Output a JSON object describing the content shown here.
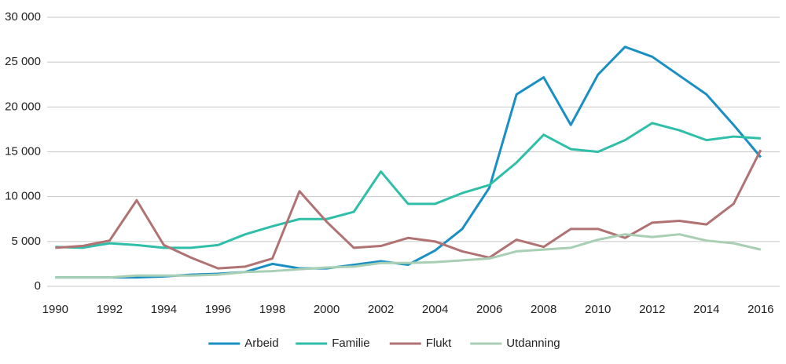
{
  "chart_data": {
    "type": "line",
    "x": [
      1990,
      1991,
      1992,
      1993,
      1994,
      1995,
      1996,
      1997,
      1998,
      1999,
      2000,
      2001,
      2002,
      2003,
      2004,
      2005,
      2006,
      2007,
      2008,
      2009,
      2010,
      2011,
      2012,
      2013,
      2014,
      2015,
      2016
    ],
    "series": [
      {
        "name": "Arbeid",
        "color": "#1a8fc4",
        "values": [
          1000,
          1000,
          1000,
          1000,
          1100,
          1300,
          1400,
          1600,
          2500,
          2000,
          2000,
          2400,
          2800,
          2400,
          4000,
          6400,
          11000,
          21400,
          23300,
          18000,
          23600,
          26700,
          25600,
          23500,
          21400,
          18000,
          14400
        ]
      },
      {
        "name": "Familie",
        "color": "#2fbfa8",
        "values": [
          4400,
          4300,
          4800,
          4600,
          4300,
          4300,
          4600,
          5800,
          6700,
          7500,
          7500,
          8300,
          12800,
          9200,
          9200,
          10400,
          11300,
          13800,
          16900,
          15300,
          15000,
          16300,
          18200,
          17400,
          16300,
          16700,
          16500
        ]
      },
      {
        "name": "Flukt",
        "color": "#b07272",
        "values": [
          4300,
          4500,
          5100,
          9600,
          4600,
          3200,
          2000,
          2200,
          3100,
          10600,
          7200,
          4300,
          4500,
          5400,
          5000,
          3900,
          3200,
          5200,
          4400,
          6400,
          6400,
          5400,
          7100,
          7300,
          6900,
          9200,
          15200
        ]
      },
      {
        "name": "Utdanning",
        "color": "#a8cfb4",
        "values": [
          1000,
          1000,
          1000,
          1200,
          1200,
          1200,
          1300,
          1600,
          1700,
          1900,
          2100,
          2200,
          2600,
          2600,
          2700,
          2900,
          3100,
          3900,
          4100,
          4300,
          5200,
          5800,
          5500,
          5800,
          5100,
          4800,
          4100
        ]
      }
    ],
    "xlim": [
      1989.7,
      2016.7
    ],
    "xticks": [
      1990,
      1992,
      1994,
      1996,
      1998,
      2000,
      2002,
      2004,
      2006,
      2008,
      2010,
      2012,
      2014,
      2016
    ],
    "ylim": [
      0,
      30000
    ],
    "yticks": [
      0,
      {
        "value": 5000,
        "label": "5 000"
      },
      {
        "value": 10000,
        "label": "10 000"
      },
      {
        "value": 15000,
        "label": "15 000"
      },
      {
        "value": 20000,
        "label": "20 000"
      },
      {
        "value": 25000,
        "label": "25 000"
      },
      {
        "value": 30000,
        "label": "30 000"
      }
    ],
    "grid": true,
    "legend": "bottom"
  }
}
